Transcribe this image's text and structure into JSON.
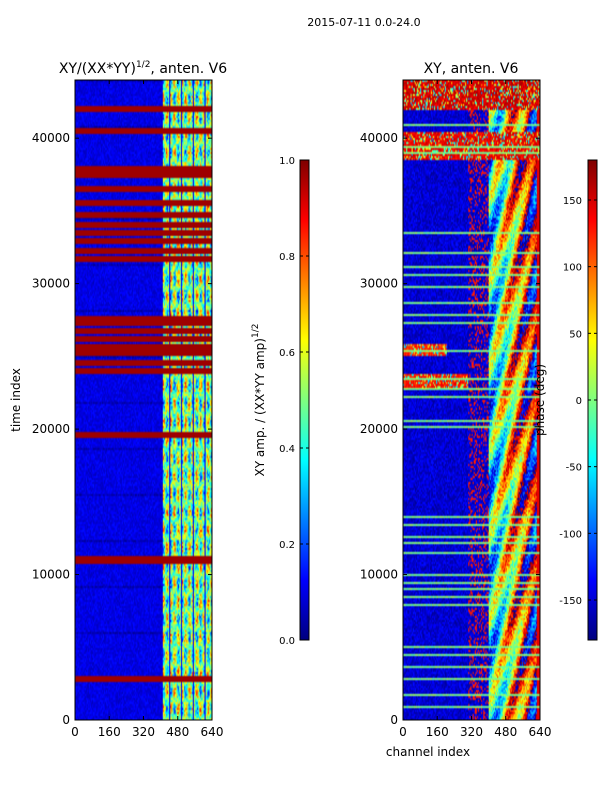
{
  "figure": {
    "suptitle": "2015-07-11 0.0-24.0"
  },
  "chart_data": [
    {
      "type": "heatmap",
      "title": "XY/(XX*YY)^1/2, anten. V6",
      "title_parts": [
        "XY/(XX*YY)",
        "1/2",
        ", anten. V6"
      ],
      "xlabel": "",
      "ylabel": "time index",
      "xlim": [
        0,
        640
      ],
      "ylim": [
        0,
        44000
      ],
      "xticks": [
        0,
        160,
        320,
        480,
        640
      ],
      "yticks": [
        0,
        10000,
        20000,
        30000,
        40000
      ],
      "value_range": [
        0,
        1
      ],
      "background_value": 0.1,
      "active_band_channels": [
        410,
        640
      ],
      "active_band_level": 0.5,
      "saturated_rows": [
        2700,
        10900,
        11100,
        19600,
        24000,
        24500,
        25200,
        25600,
        26200,
        26700,
        27300,
        27600,
        31700,
        32300,
        32900,
        33500,
        34100,
        34700,
        35600,
        36600,
        37500,
        38000,
        40600,
        42000
      ],
      "colorbar": {
        "label_parts": [
          "XY amp. / (XX*YY amp)",
          "1/2"
        ],
        "range": [
          0,
          1
        ],
        "ticks": [
          "0.0",
          "0.2",
          "0.4",
          "0.6",
          "0.8",
          "1.0"
        ]
      }
    },
    {
      "type": "heatmap",
      "title": "XY, anten. V6",
      "xlabel": "channel index",
      "ylabel": "",
      "xlim": [
        0,
        640
      ],
      "ylim": [
        0,
        44000
      ],
      "xticks": [
        0,
        160,
        320,
        480,
        640
      ],
      "yticks": [
        0,
        10000,
        20000,
        30000,
        40000
      ],
      "value_range": [
        -180,
        180
      ],
      "background_value": -150,
      "phase_wrap_start_channel": 400,
      "red_blocks": [
        {
          "channels": [
            0,
            640
          ],
          "rows": [
            42000,
            44000
          ],
          "level": 150
        },
        {
          "channels": [
            0,
            640
          ],
          "rows": [
            38500,
            40500
          ],
          "level": 140
        },
        {
          "channels": [
            0,
            300
          ],
          "rows": [
            22700,
            23800
          ],
          "level": 130
        },
        {
          "channels": [
            0,
            200
          ],
          "rows": [
            25100,
            25900
          ],
          "level": 120
        }
      ],
      "light_rows": [
        800,
        1700,
        2800,
        3600,
        4400,
        4900,
        7900,
        8400,
        8900,
        9400,
        9900,
        11500,
        12200,
        12600,
        13400,
        14000,
        20200,
        20500,
        22200,
        22800,
        23500,
        25400,
        27300,
        27900,
        28700,
        29800,
        30600,
        31200,
        32100,
        33500,
        39000,
        39400,
        41000
      ],
      "colorbar": {
        "label": "phase (deg)",
        "range": [
          -180,
          180
        ],
        "ticks": [
          "-150",
          "-100",
          "-50",
          "0",
          "50",
          "100",
          "150"
        ]
      }
    }
  ]
}
